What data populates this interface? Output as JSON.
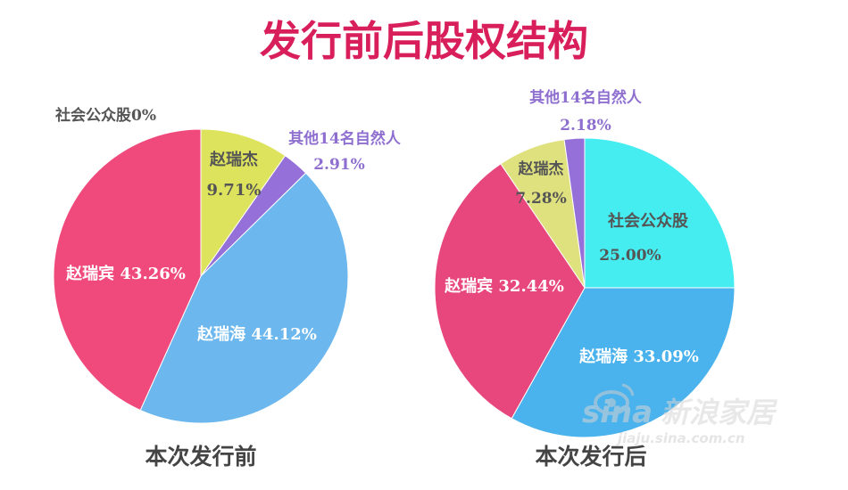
{
  "title": "发行前后股权结构",
  "colors": {
    "title": "#d81e5b",
    "label_dark": "#555555",
    "label_purple": "#8e6fd0",
    "label_white": "#ffffff"
  },
  "chart_data": [
    {
      "type": "pie",
      "caption": "本次发行前",
      "slices": [
        {
          "name": "社会公众股",
          "value": 0,
          "value_label": "0%",
          "color": "#2fe0e8"
        },
        {
          "name": "赵瑞杰",
          "value": 9.71,
          "value_label": "9.71%",
          "color": "#dde35c"
        },
        {
          "name": "其他14名自然人",
          "value": 2.91,
          "value_label": "2.91%",
          "color": "#9570d8"
        },
        {
          "name": "赵瑞海",
          "value": 44.12,
          "value_label": "44.12%",
          "color": "#6bb7ee"
        },
        {
          "name": "赵瑞宾",
          "value": 43.26,
          "value_label": "43.26%",
          "color": "#f04a7c"
        }
      ]
    },
    {
      "type": "pie",
      "caption": "本次发行后",
      "slices": [
        {
          "name": "社会公众股",
          "value": 25.0,
          "value_label": "25.00%",
          "color": "#45ecf0"
        },
        {
          "name": "赵瑞海",
          "value": 33.09,
          "value_label": "33.09%",
          "color": "#4ab2ec"
        },
        {
          "name": "赵瑞宾",
          "value": 32.44,
          "value_label": "32.44%",
          "color": "#e8477e"
        },
        {
          "name": "赵瑞杰",
          "value": 7.28,
          "value_label": "7.28%",
          "color": "#dfe07e"
        },
        {
          "name": "其他14名自然人",
          "value": 2.18,
          "value_label": "2.18%",
          "color": "#9570d8"
        }
      ]
    }
  ],
  "watermark": {
    "brand": "sina",
    "brand_cn": "新浪家居",
    "url": "jiaju.sina.com.cn"
  }
}
